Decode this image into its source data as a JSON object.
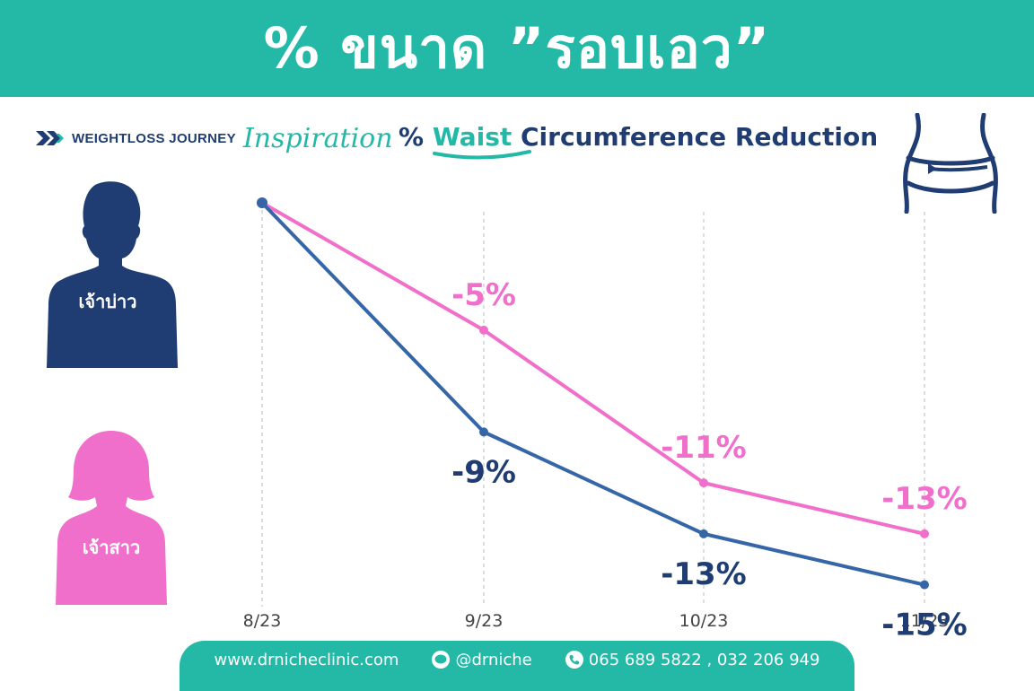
{
  "header": {
    "title": "% ขนาด ”รอบเอว”"
  },
  "brand": {
    "text": "WEIGHTLOSS JOURNEY",
    "script": "Inspiration"
  },
  "subtitle": {
    "part1": "% ",
    "highlight": "Waist",
    "part2": " Circumference Reduction"
  },
  "figures": {
    "groom_label": "เจ้าบ่าว",
    "bride_label": "เจ้าสาว"
  },
  "colors": {
    "teal": "#24b9a7",
    "navy": "#1f3d72",
    "pink": "#f06fcb",
    "groom_line": "#3566a8"
  },
  "chart_data": {
    "type": "line",
    "categories": [
      "8/23",
      "9/23",
      "10/23",
      "11/23"
    ],
    "ylim": [
      -16,
      0
    ],
    "series": [
      {
        "key": "groom",
        "values": [
          0,
          -9,
          -13,
          -15
        ],
        "labels": [
          "",
          "-9%",
          "-13%",
          "-15%"
        ]
      },
      {
        "key": "bride",
        "values": [
          0,
          -5,
          -11,
          -13
        ],
        "labels": [
          "",
          "-5%",
          "-11%",
          "-13%"
        ]
      }
    ]
  },
  "footer": {
    "website": "www.drnicheclinic.com",
    "line": "@drniche",
    "phone": "065 689 5822 , 032 206 949"
  }
}
